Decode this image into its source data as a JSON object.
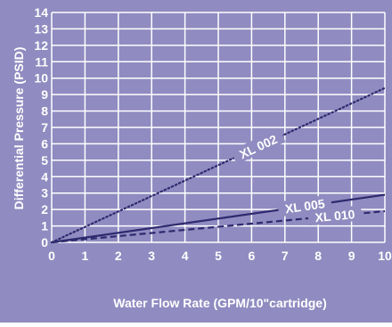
{
  "colors": {
    "background": "#908bc0",
    "grid": "#ffffff",
    "line": "#2e2a6e",
    "text": "#ffffff",
    "series_label_bg": "#908bc0"
  },
  "chart_data": {
    "type": "line",
    "title": "",
    "xlabel": "Water Flow Rate (GPM/10\"cartridge)",
    "ylabel": "Differential Pressure (PSID)",
    "xlim": [
      0,
      10
    ],
    "ylim": [
      0,
      14
    ],
    "xticks": [
      "0",
      "1",
      "2",
      "3",
      "4",
      "5",
      "6",
      "7",
      "8",
      "9",
      "10"
    ],
    "yticks": [
      "0",
      "1",
      "2",
      "3",
      "4",
      "5",
      "6",
      "7",
      "8",
      "9",
      "10",
      "11",
      "12",
      "13",
      "14"
    ],
    "grid": true,
    "legend": "none",
    "series": [
      {
        "name": "XL 002",
        "style": "dotted",
        "x": [
          0,
          10
        ],
        "y": [
          0,
          9.4
        ]
      },
      {
        "name": "XL 005",
        "style": "solid",
        "x": [
          0,
          10
        ],
        "y": [
          0,
          2.9
        ]
      },
      {
        "name": "XL 010",
        "style": "dashed",
        "x": [
          0,
          10
        ],
        "y": [
          0,
          1.9
        ]
      }
    ]
  }
}
